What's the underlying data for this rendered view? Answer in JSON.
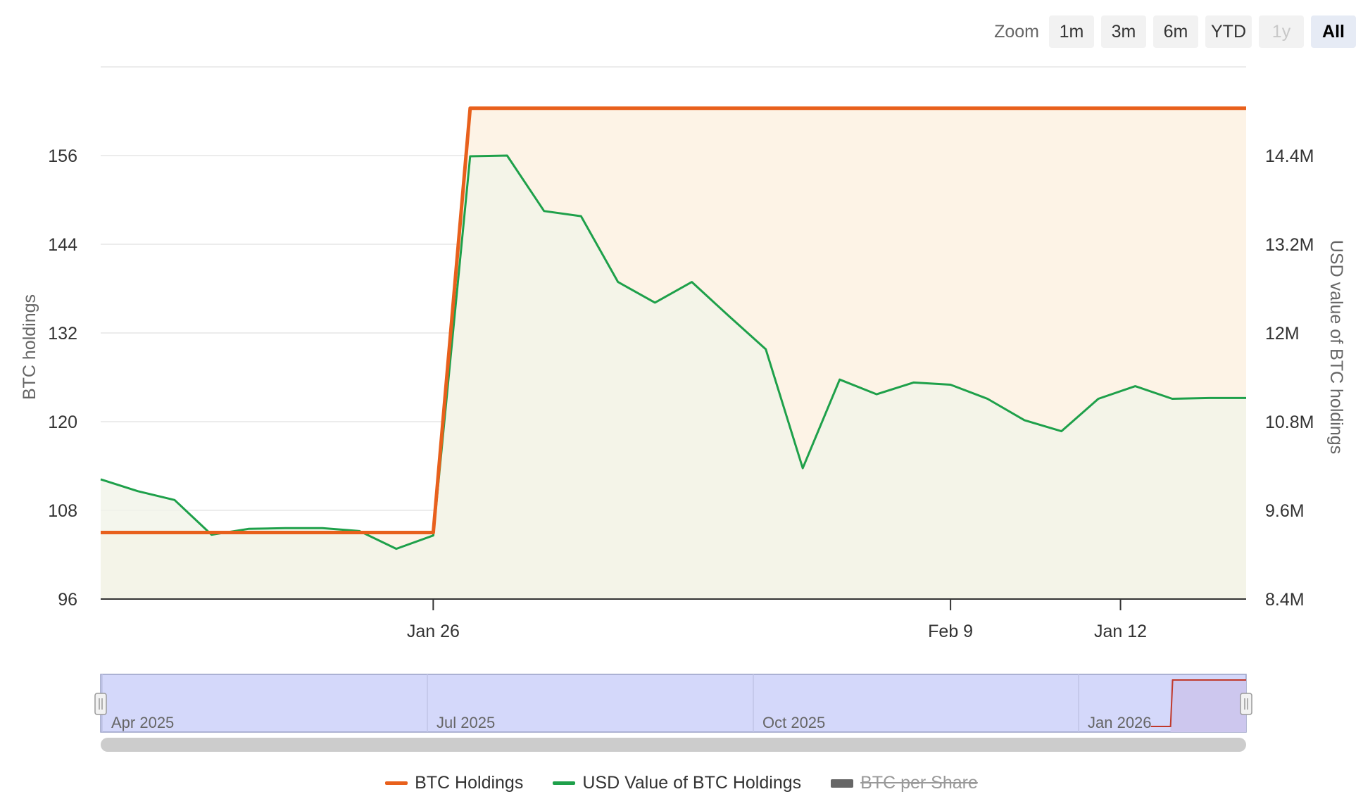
{
  "zoom": {
    "label": "Zoom",
    "buttons": [
      {
        "label": "1m",
        "state": "normal"
      },
      {
        "label": "3m",
        "state": "normal"
      },
      {
        "label": "6m",
        "state": "normal"
      },
      {
        "label": "YTD",
        "state": "normal"
      },
      {
        "label": "1y",
        "state": "disabled"
      },
      {
        "label": "All",
        "state": "active"
      }
    ]
  },
  "chart_data": {
    "type": "line",
    "title": "",
    "ylabel_left": "BTC holdings",
    "ylabel_right": "USD value of BTC holdings",
    "ylim_left": [
      96,
      168
    ],
    "yticks_left": [
      96,
      108,
      120,
      132,
      144,
      156
    ],
    "ytick_labels_left": [
      "96",
      "108",
      "120",
      "132",
      "144",
      "156"
    ],
    "ylim_right": [
      8400000,
      15600000
    ],
    "yticks_right": [
      8400000,
      9600000,
      10800000,
      12000000,
      13200000,
      14400000
    ],
    "ytick_labels_right": [
      "8.4M",
      "9.6M",
      "10.8M",
      "12M",
      "13.2M",
      "14.4M"
    ],
    "x_index_range": [
      0,
      31
    ],
    "x_ticks": [
      {
        "index": 9,
        "label": "Jan 26"
      },
      {
        "index": 23,
        "label": "Feb 9"
      },
      {
        "index": 27.6,
        "label": "Jan 12"
      }
    ],
    "grid": true,
    "legend_position": "bottom-center",
    "series": [
      {
        "name": "BTC Holdings",
        "axis": "left",
        "color": "#e8601c",
        "fill": "#fdf3e6",
        "points": [
          [
            0,
            105
          ],
          [
            9,
            105
          ],
          [
            10,
            162.4
          ],
          [
            31,
            162.4
          ]
        ]
      },
      {
        "name": "USD Value of BTC Holdings",
        "axis": "right",
        "color": "#1ea04a",
        "fill": "#f1f4e8",
        "points": [
          [
            0,
            10020000
          ],
          [
            1,
            9860000
          ],
          [
            2,
            9740000
          ],
          [
            3,
            9270000
          ],
          [
            4,
            9350000
          ],
          [
            5,
            9360000
          ],
          [
            6,
            9360000
          ],
          [
            7,
            9320000
          ],
          [
            8,
            9080000
          ],
          [
            9,
            9260000
          ],
          [
            10,
            14390000
          ],
          [
            11,
            14400000
          ],
          [
            12,
            13650000
          ],
          [
            13,
            13580000
          ],
          [
            14,
            12690000
          ],
          [
            15,
            12410000
          ],
          [
            16,
            12690000
          ],
          [
            17,
            12230000
          ],
          [
            18,
            11780000
          ],
          [
            19,
            10170000
          ],
          [
            20,
            11370000
          ],
          [
            21,
            11170000
          ],
          [
            22,
            11330000
          ],
          [
            23,
            11300000
          ],
          [
            24,
            11110000
          ],
          [
            25,
            10820000
          ],
          [
            26,
            10670000
          ],
          [
            27,
            11110000
          ],
          [
            28,
            11280000
          ],
          [
            29,
            11110000
          ],
          [
            30,
            11120000
          ],
          [
            31,
            11120000
          ]
        ]
      },
      {
        "name": "BTC per Share",
        "axis": "left",
        "color": "#666666",
        "visible": false,
        "points": []
      }
    ],
    "navigator": {
      "labels": [
        "Apr 2025",
        "Jul 2025",
        "Oct 2025",
        "Jan 2026"
      ],
      "selected_range": "All",
      "line_color": "#c0392b",
      "step_fraction": 0.934
    }
  }
}
